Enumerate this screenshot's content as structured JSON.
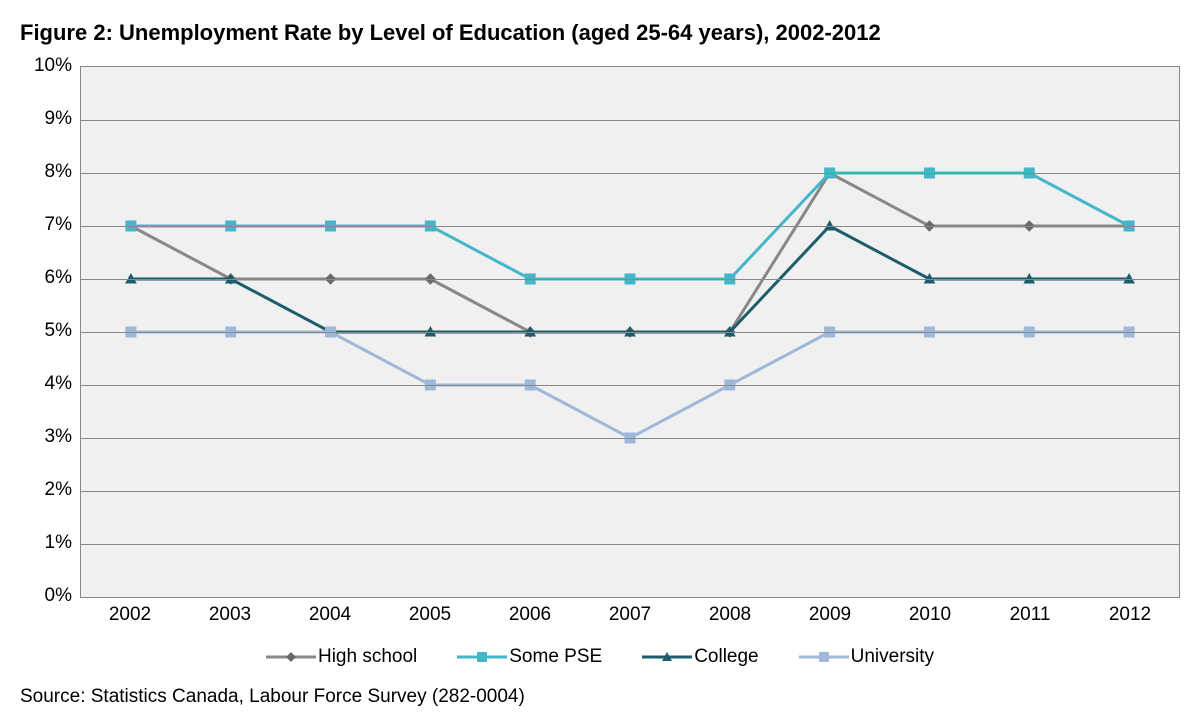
{
  "chart": {
    "type": "line",
    "title": "Figure 2: Unemployment Rate by Level of Education (aged 25-64 years), 2002-2012",
    "title_fontsize": 22,
    "title_fontweight": "bold",
    "source": "Source: Statistics Canada, Labour Force Survey (282-0004)",
    "source_fontsize": 19,
    "background_color": "#ffffff",
    "plot_background_color": "#f0f0f0",
    "grid_color": "#888888",
    "border_color": "#888888",
    "tick_fontsize": 19,
    "legend_fontsize": 19,
    "line_width": 3,
    "marker_size": 8,
    "x": {
      "categories": [
        "2002",
        "2003",
        "2004",
        "2005",
        "2006",
        "2007",
        "2008",
        "2009",
        "2010",
        "2011",
        "2012"
      ]
    },
    "y": {
      "min": 0,
      "max": 10,
      "step": 1,
      "suffix": "%"
    },
    "series": [
      {
        "name": "High school",
        "color": "#888888",
        "marker": "diamond",
        "marker_fill": "#6a6a6a",
        "data": [
          7,
          6,
          6,
          6,
          5,
          5,
          5,
          8,
          7,
          7,
          7
        ]
      },
      {
        "name": "Some PSE",
        "color": "#45b6c9",
        "marker": "square",
        "marker_fill": "#45b6c9",
        "data": [
          7,
          7,
          7,
          7,
          6,
          6,
          6,
          8,
          8,
          8,
          7
        ]
      },
      {
        "name": "College",
        "color": "#1d5d6b",
        "marker": "triangle",
        "marker_fill": "#1d5d6b",
        "data": [
          6,
          6,
          5,
          5,
          5,
          5,
          5,
          7,
          6,
          6,
          6
        ]
      },
      {
        "name": "University",
        "color": "#9db8d9",
        "marker": "square",
        "marker_fill": "#9db8d9",
        "data": [
          5,
          5,
          5,
          4,
          4,
          3,
          4,
          5,
          5,
          5,
          5
        ]
      }
    ]
  }
}
